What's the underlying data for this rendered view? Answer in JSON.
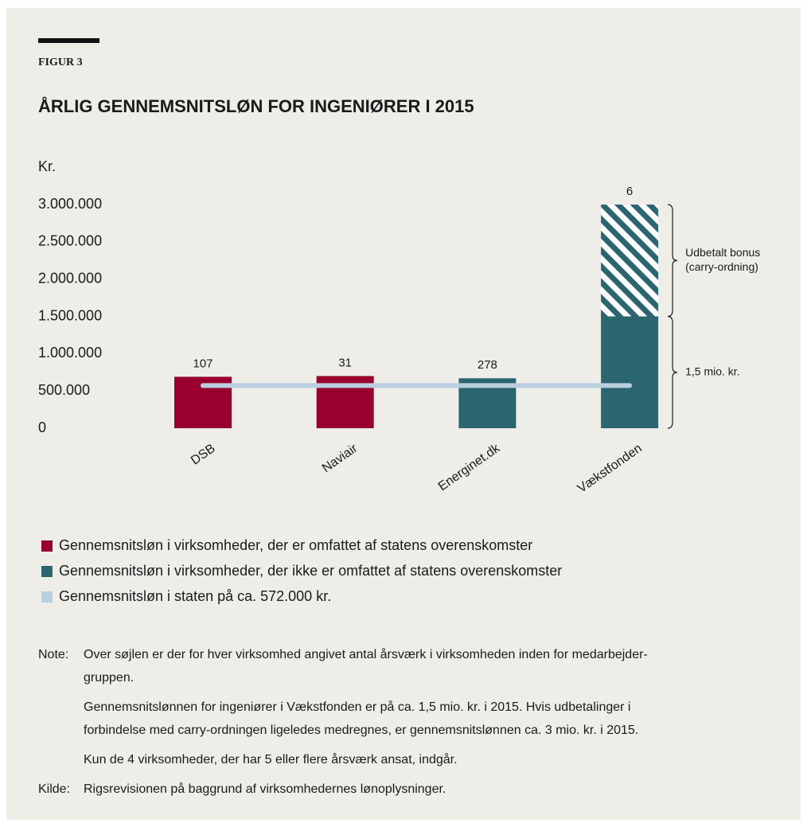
{
  "figure_label": "FIGUR 3",
  "chart_data": {
    "type": "bar",
    "title": "ÅRLIG GENNEMSNITSLØN FOR INGENIØRER I 2015",
    "y_label": "Kr.",
    "categories": [
      "DSB",
      "Naviair",
      "Energinet.dk",
      "Vækstfonden"
    ],
    "series": [
      {
        "name": "Gennemsnitsløn i virksomheder, der er omfattet af statens overenskomster",
        "color": "#990030",
        "values": [
          690000,
          700000,
          null,
          null
        ]
      },
      {
        "name": "Gennemsnitsløn i virksomheder, der ikke er omfattet af statens overenskomster",
        "color": "#2b6670",
        "values": [
          null,
          null,
          670000,
          1500000
        ]
      }
    ],
    "bonus": {
      "label_lines": [
        "Udbetalt bonus",
        "(carry-ordning)"
      ],
      "values": [
        null,
        null,
        null,
        1500000
      ]
    },
    "base_annotation": "1,5 mio. kr.",
    "bar_labels": [
      107,
      31,
      278,
      6
    ],
    "reference_line": {
      "name": "Gennemsnitsløn i staten på ca. 572.000 kr.",
      "value": 572000,
      "color": "#b9cfe0"
    },
    "ylim": [
      0,
      3000000
    ],
    "yticks": [
      0,
      {
        "value": 500000,
        "label": "500.000"
      },
      {
        "value": 1000000,
        "label": "1.000.000"
      },
      {
        "value": 1500000,
        "label": "1.500.000"
      },
      {
        "value": 2000000,
        "label": "2.000.000"
      },
      {
        "value": 2500000,
        "label": "2.500.000"
      },
      {
        "value": 3000000,
        "label": "3.000.000"
      }
    ]
  },
  "notes": {
    "label": "Note:",
    "paragraphs": [
      [
        "Over søjlen er der for hver virksomhed angivet antal årsværk i virksomheden inden for medarbejder-",
        "gruppen."
      ],
      [
        "Gennemsnitslønnen for ingeniører i Vækstfonden er på ca. 1,5 mio. kr. i 2015. Hvis udbetalinger i",
        "forbindelse med carry-ordningen ligeledes medregnes, er gennemsnitslønnen ca. 3 mio. kr. i 2015."
      ],
      [
        "Kun de 4 virksomheder, der har 5 eller flere årsværk ansat, indgår."
      ]
    ]
  },
  "source": {
    "label": "Kilde:",
    "text": "Rigsrevisionen på baggrund af virksomhedernes lønoplysninger."
  }
}
